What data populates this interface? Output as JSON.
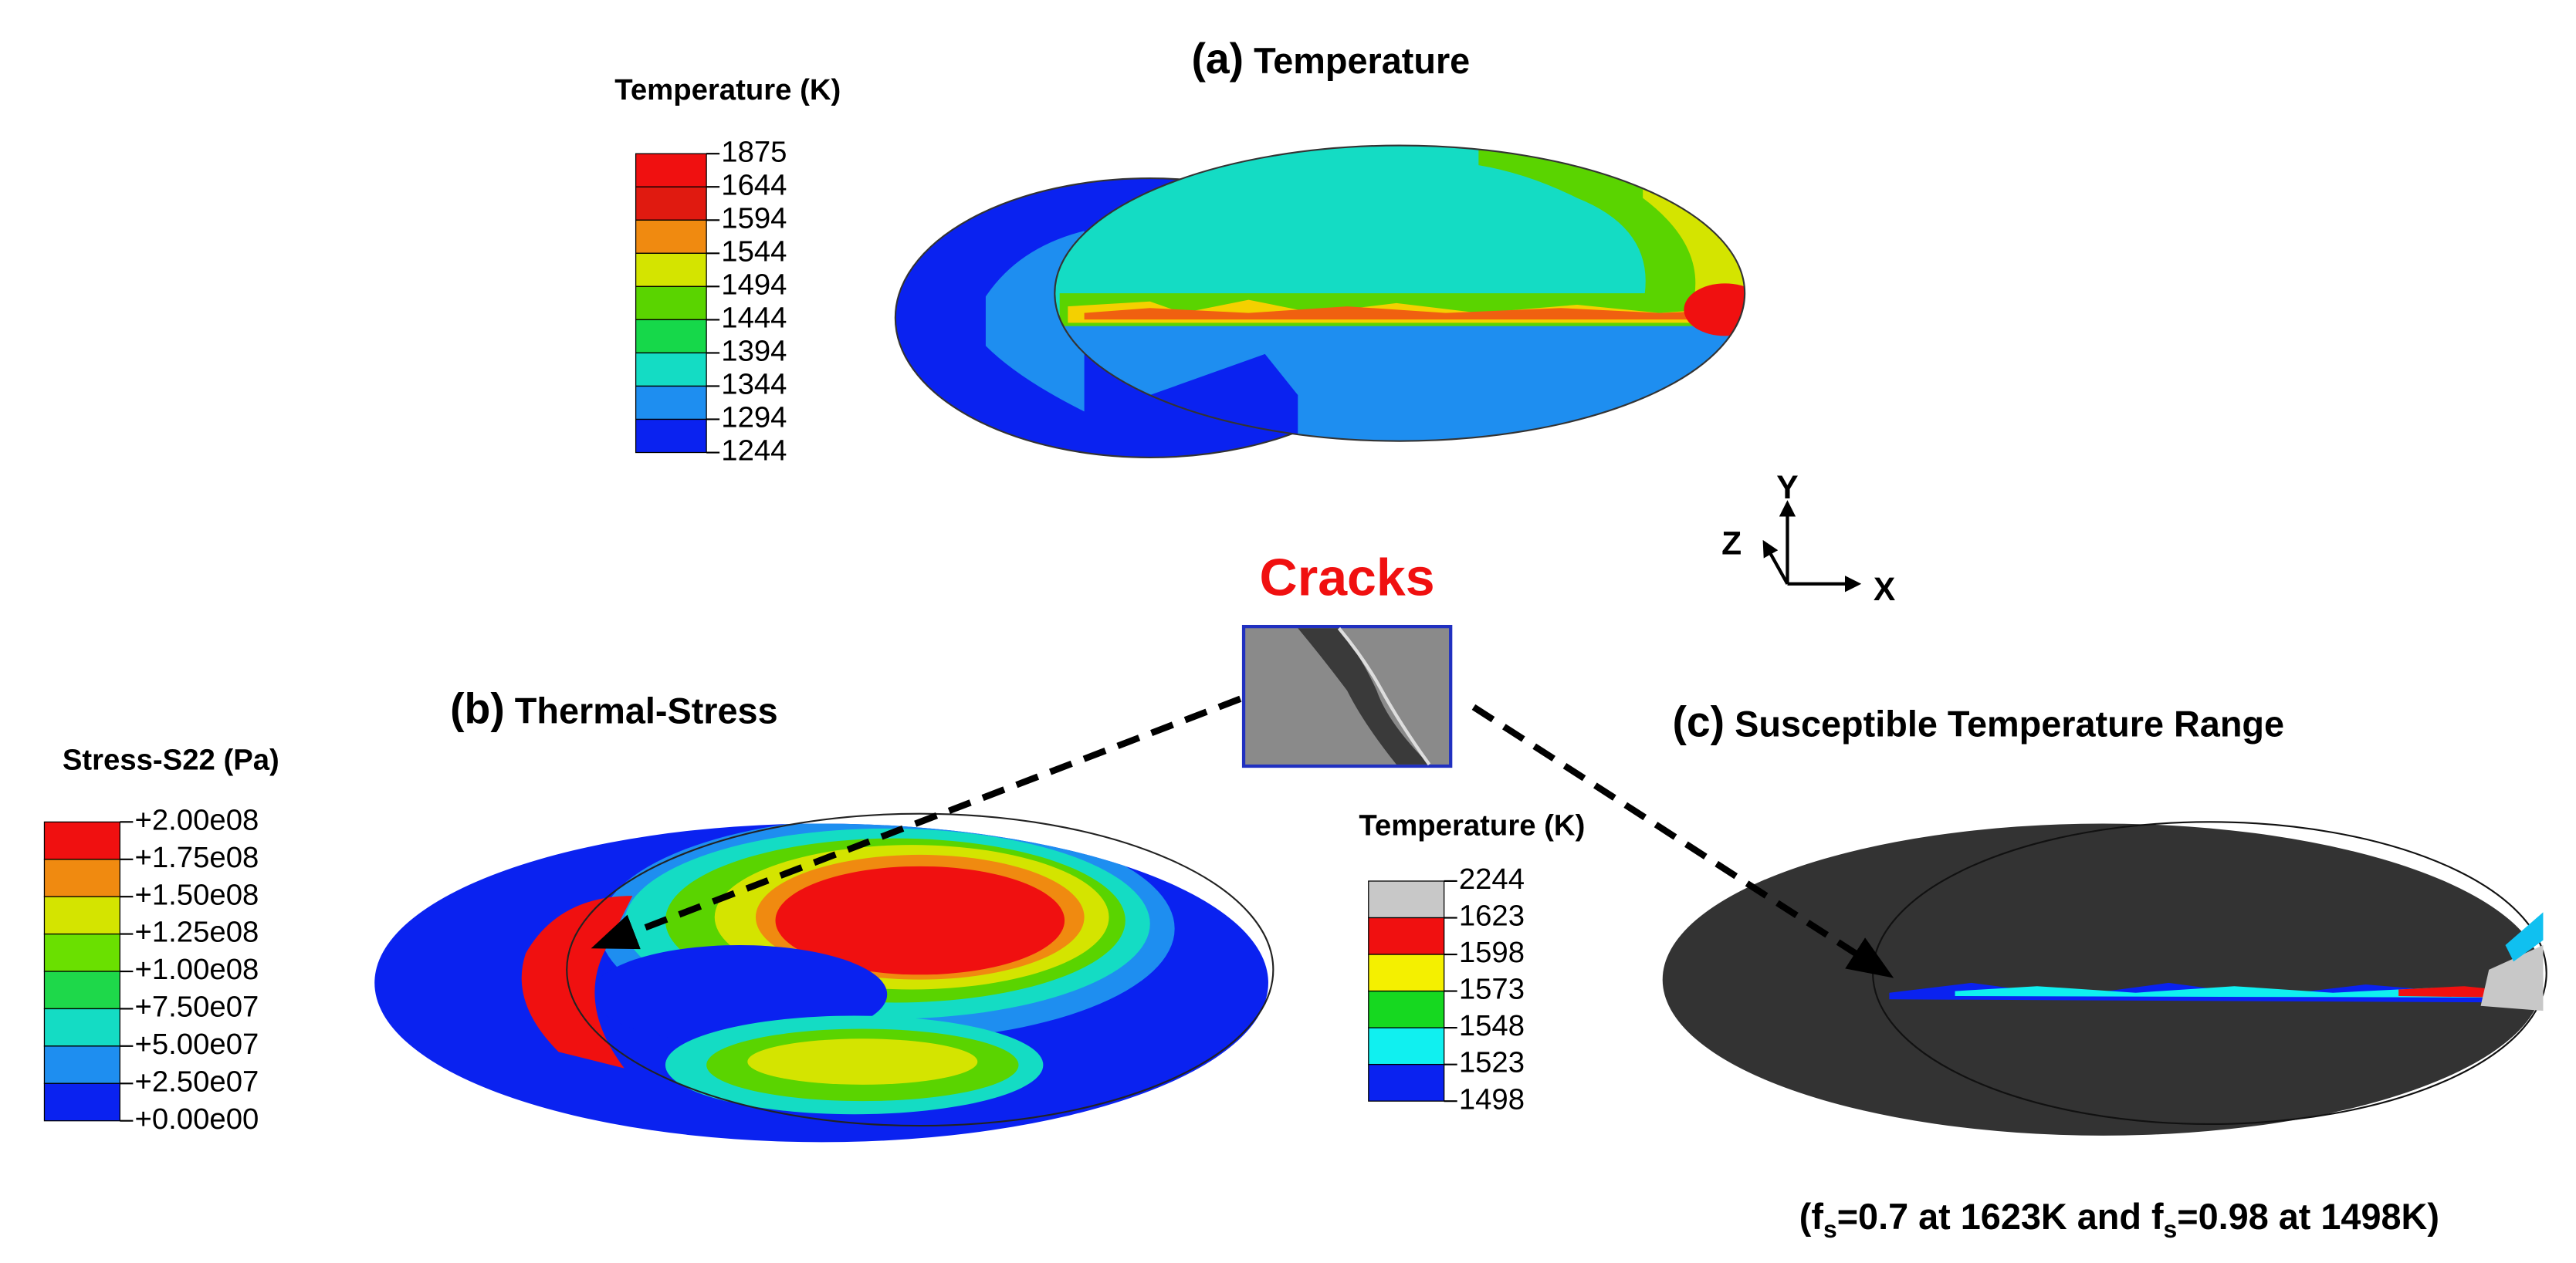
{
  "panels": [
    {
      "label": "(a)",
      "title": "Temperature"
    },
    {
      "label": "(b)",
      "title": "Thermal-Stress"
    },
    {
      "label": "(c)",
      "title": "Susceptible Temperature Range"
    }
  ],
  "legends": [
    {
      "title": "Temperature (K)",
      "labels": [
        "1875",
        "1644",
        "1594",
        "1544",
        "1494",
        "1444",
        "1394",
        "1344",
        "1294",
        "1244"
      ],
      "colors": [
        "#f01010",
        "#e01a10",
        "#f08a10",
        "#d4e400",
        "#5ad400",
        "#16d84a",
        "#14dcc4",
        "#1e8ef0",
        "#0a22f0"
      ]
    },
    {
      "title": "Stress-S22 (Pa)",
      "labels": [
        "+2.00e08",
        "+1.75e08",
        "+1.50e08",
        "+1.25e08",
        "+1.00e08",
        "+7.50e07",
        "+5.00e07",
        "+2.50e07",
        "+0.00e00"
      ],
      "colors": [
        "#f01010",
        "#f08a10",
        "#d4e400",
        "#6ae000",
        "#1ed84a",
        "#14dcc4",
        "#1e8ef0",
        "#0a22f0"
      ]
    },
    {
      "title": "Temperature (K)",
      "labels": [
        "2244",
        "1623",
        "1598",
        "1573",
        "1548",
        "1523",
        "1498"
      ],
      "colors": [
        "#c8c8c8",
        "#f01010",
        "#f4f000",
        "#16d820",
        "#10f0f0",
        "#0a22f0"
      ]
    }
  ],
  "cracks": "Cracks",
  "axes": {
    "y": "Y",
    "z": "Z",
    "x": "X"
  },
  "footnote": {
    "parts": [
      "(f",
      "s",
      "=0.7 at 1623K and f",
      "s",
      "=0.98 at 1498K)"
    ]
  }
}
